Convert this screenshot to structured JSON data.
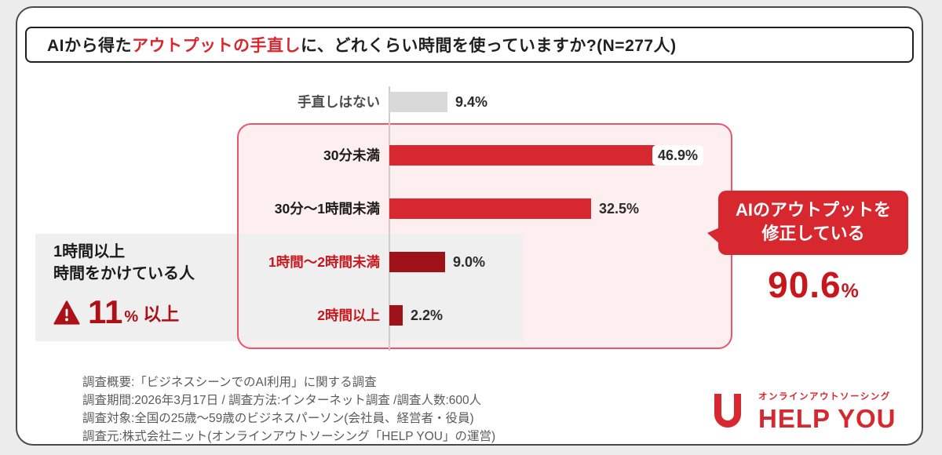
{
  "title": {
    "prefix": "AIから得た",
    "highlight": "アウトプットの手直し",
    "suffix": "に、どれくらい時間を使っていますか?(N=277人)"
  },
  "chart_data": {
    "type": "bar",
    "orientation": "horizontal",
    "title": "AIから得たアウトプットの手直しに、どれくらい時間を使っていますか?",
    "sample_label": "N=277人",
    "categories": [
      "手直しはない",
      "30分未満",
      "30分〜1時間未満",
      "1時間〜2時間未満",
      "2時間以上"
    ],
    "values": [
      9.4,
      46.9,
      32.5,
      9.0,
      2.2
    ],
    "value_labels": [
      "9.4%",
      "46.9%",
      "32.5%",
      "9.0%",
      "2.2%"
    ],
    "bar_colors": [
      "#d9d9d9",
      "#d7282f",
      "#d7282f",
      "#9e1118",
      "#9e1118"
    ],
    "category_colors": [
      "#4d4d4d",
      "#1a1a1a",
      "#1a1a1a",
      "#c8161d",
      "#c8161d"
    ],
    "xlim": [
      0,
      50
    ],
    "grid": false,
    "legend": "none"
  },
  "annotations": {
    "left_box": {
      "line1": "1時間以上",
      "line2": "時間をかけている人",
      "value": "11",
      "unit": "%",
      "suffix": "以上"
    },
    "bubble": {
      "line1": "AIのアウトプットを",
      "line2": "修正している"
    },
    "total": {
      "value": "90.6",
      "unit": "%"
    }
  },
  "footer": {
    "lines": [
      "調査概要:「ビジネスシーンでのAI利用」に関する調査",
      "調査期間:2026年3月17日 / 調査方法:インターネット調査 /調査人数:600人",
      "調査対象:全国の25歳〜59歳のビジネスパーソン(会社員、経営者・役員)",
      "調査元:株式会社ニット(オンラインアウトソーシング「HELP YOU」の運営)"
    ]
  },
  "logo": {
    "tagline": "オンラインアウトソーシング",
    "name": "HELP YOU"
  },
  "colors": {
    "accent_red": "#d7282f",
    "dark_red": "#9e1118",
    "highlight_text_red": "#c8161d",
    "warning_red": "#ad1016",
    "gray_bar": "#d9d9d9",
    "band_gray": "#efefef",
    "pink_fill": "#fdeef0",
    "pink_border": "#e8566a"
  }
}
